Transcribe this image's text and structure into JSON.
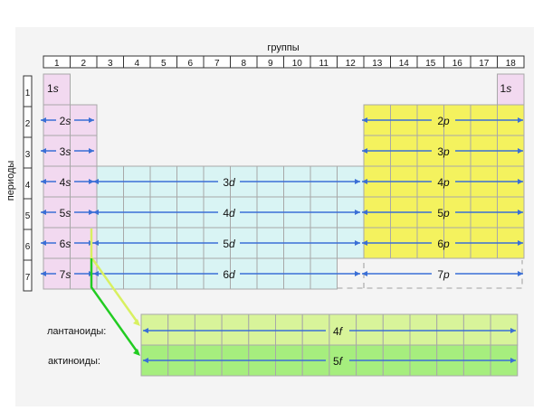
{
  "header": {
    "groups_label": "группы",
    "periods_label": "периоды"
  },
  "groups": [
    "1",
    "2",
    "3",
    "4",
    "5",
    "6",
    "7",
    "8",
    "9",
    "10",
    "11",
    "12",
    "13",
    "14",
    "15",
    "16",
    "17",
    "18"
  ],
  "periods": [
    "1",
    "2",
    "3",
    "4",
    "5",
    "6",
    "7"
  ],
  "blocks": {
    "s": [
      "1s",
      "2s",
      "3s",
      "4s",
      "5s",
      "6s",
      "7s"
    ],
    "s_he": "1s",
    "d": [
      "3d",
      "4d",
      "5d",
      "6d"
    ],
    "p": [
      "2p",
      "3p",
      "4p",
      "5p",
      "6p",
      "7p"
    ],
    "f": [
      "4f",
      "5f"
    ]
  },
  "f_labels": {
    "lanthanoids": "лантаноиды:",
    "actinoids": "актиноиды:"
  },
  "colors": {
    "background": "#f4f4f4",
    "s": "#f2d9f0",
    "d": "#d9f4f4",
    "p": "#f4f25e",
    "f_lanth": "#d8f49a",
    "f_act": "#a6ee7e",
    "arrow": "#3a6fd6",
    "lanth_pointer": "#d8f060",
    "act_pointer": "#22cc22",
    "grid": "#a8a8a8"
  }
}
